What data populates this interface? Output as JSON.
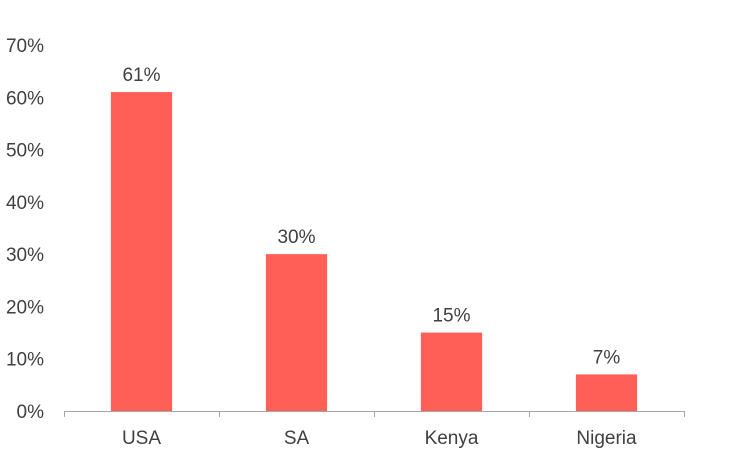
{
  "chart_data": {
    "type": "bar",
    "categories": [
      "USA",
      "SA",
      "Kenya",
      "Nigeria"
    ],
    "values": [
      61,
      30,
      15,
      7
    ],
    "data_labels": [
      "61%",
      "30%",
      "15%",
      "7%"
    ],
    "ylim": [
      0,
      70
    ],
    "yticks": [
      0,
      10,
      20,
      30,
      40,
      50,
      60,
      70
    ],
    "ytick_labels": [
      "0%",
      "10%",
      "20%",
      "30%",
      "40%",
      "50%",
      "60%",
      "70%"
    ],
    "grid": false,
    "legend": "none",
    "colors": {
      "bar": "#FF5F57",
      "axis": "#A6A6A6",
      "text": "#404040"
    }
  }
}
